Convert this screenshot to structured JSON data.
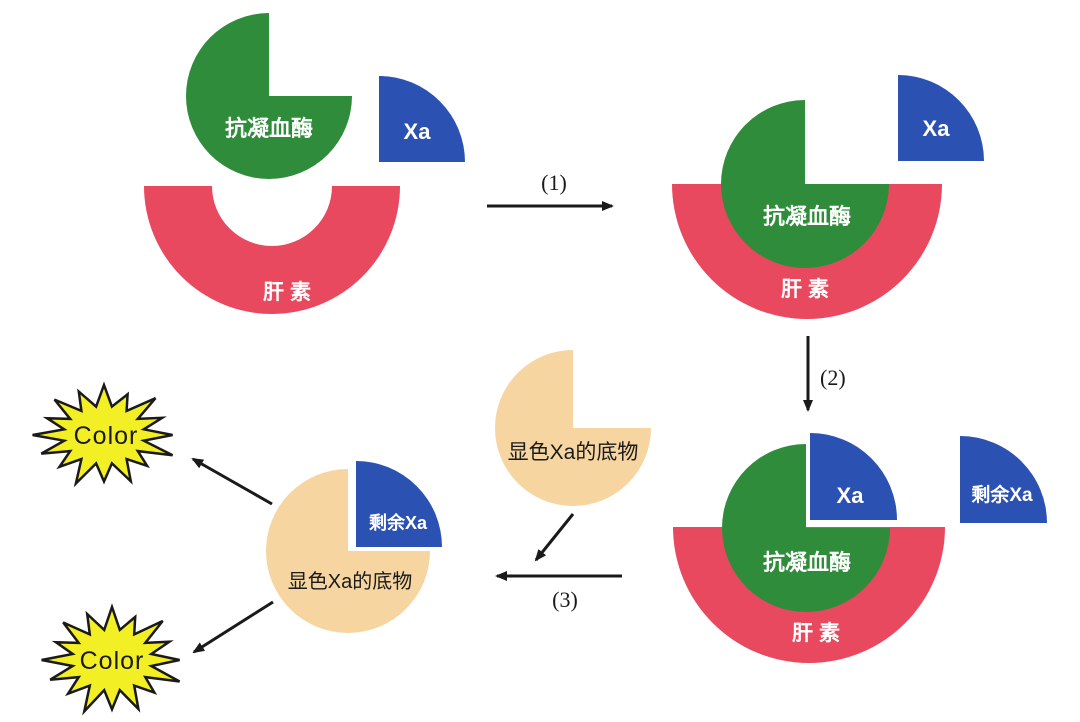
{
  "palette": {
    "antithrombin_green": "#2E8C3A",
    "heparin_red": "#E8495F",
    "xa_blue": "#2B51B3",
    "substrate_tan": "#F6D5A0",
    "color_yellow": "#F3EF25",
    "arrow_black": "#1A1A1A"
  },
  "stage_free": {
    "antithrombin": "抗凝血酶",
    "xa": "Xa",
    "heparin": "肝素"
  },
  "stage_at_heparin": {
    "antithrombin": "抗凝血酶",
    "xa": "Xa",
    "heparin": "肝素"
  },
  "stage_ternary": {
    "xa": "Xa",
    "antithrombin": "抗凝血酶",
    "heparin": "肝素",
    "residual_xa": "剩余Xa"
  },
  "substrate_free": {
    "label": "显色Xa的底物"
  },
  "substrate_complex": {
    "residual_xa": "剩余Xa",
    "substrate": "显色Xa的底物"
  },
  "outputs": {
    "color_top": "Color",
    "color_bottom": "Color"
  },
  "steps": {
    "s1": "(1)",
    "s2": "(2)",
    "s3": "(3)"
  }
}
